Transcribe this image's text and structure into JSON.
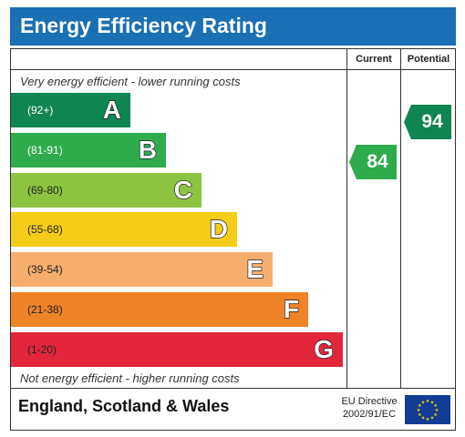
{
  "title": "Energy Efficiency Rating",
  "columns": {
    "current": "Current",
    "potential": "Potential"
  },
  "notes": {
    "top": "Very energy efficient - lower running costs",
    "bottom": "Not energy efficient - higher running costs"
  },
  "chart_data": {
    "type": "bar",
    "title": "Energy Efficiency Rating",
    "categories": [
      "A",
      "B",
      "C",
      "D",
      "E",
      "F",
      "G"
    ],
    "ranges": [
      "(92+)",
      "(81-91)",
      "(69-80)",
      "(55-68)",
      "(39-54)",
      "(21-38)",
      "(1-20)"
    ],
    "colors": [
      "#0f8552",
      "#2eab4b",
      "#8cc43f",
      "#f5cd18",
      "#f6ae6f",
      "#ee8327",
      "#e3263a"
    ],
    "current": {
      "value": 84,
      "band": "B",
      "color": "#2eab4b"
    },
    "potential": {
      "value": 94,
      "band": "A",
      "color": "#0f8552"
    }
  },
  "footer": {
    "region": "England, Scotland & Wales",
    "directive_line1": "EU Directive",
    "directive_line2": "2002/91/EC",
    "flag_icon": "eu-flag-icon"
  }
}
